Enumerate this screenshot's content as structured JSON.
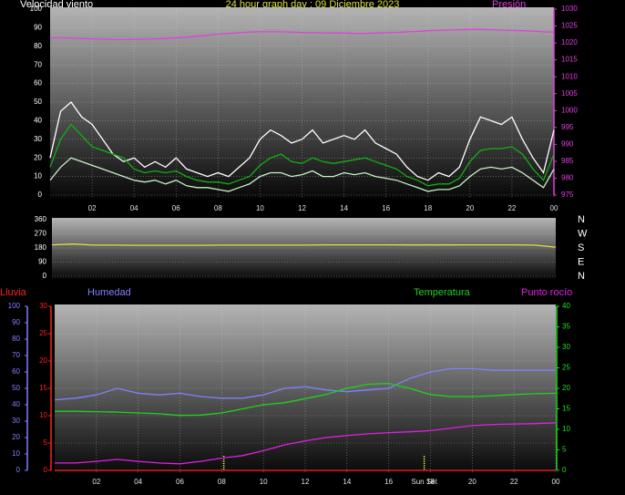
{
  "chart_data": [
    {
      "type": "line",
      "title": "24 hour graph day : 09 Diciembre 2023",
      "ylabel": "Velocidad viento",
      "y2label": "Presión",
      "axis_colors": {
        "y": "#ffffff",
        "y2": "#e040e0"
      },
      "grid": true,
      "xlim": [
        0,
        24
      ],
      "xticks": [
        {
          "value": 2,
          "label": "02"
        },
        {
          "value": 4,
          "label": "04"
        },
        {
          "value": 6,
          "label": "06"
        },
        {
          "value": 8,
          "label": "08"
        },
        10,
        12,
        14,
        16,
        18,
        20,
        22,
        {
          "value": 24,
          "label": "00"
        }
      ],
      "ylim": [
        0,
        100
      ],
      "yticks": [
        0,
        10,
        20,
        30,
        40,
        50,
        60,
        70,
        80,
        90,
        100
      ],
      "y2lim": [
        975,
        1030
      ],
      "y2ticks": [
        975,
        980,
        985,
        990,
        995,
        1000,
        1005,
        1010,
        1015,
        1020,
        1025,
        1030
      ],
      "x": [
        0,
        0.5,
        1,
        1.5,
        2,
        2.5,
        3,
        3.5,
        4,
        4.5,
        5,
        5.5,
        6,
        6.5,
        7,
        7.5,
        8,
        8.5,
        9,
        9.5,
        10,
        10.5,
        11,
        11.5,
        12,
        12.5,
        13,
        13.5,
        14,
        14.5,
        15,
        15.5,
        16,
        16.5,
        17,
        17.5,
        18,
        18.5,
        19,
        19.5,
        20,
        20.5,
        21,
        21.5,
        22,
        22.5,
        23,
        23.5,
        24
      ],
      "series": [
        {
          "color": "#ffffff",
          "values": [
            20,
            45,
            50,
            42,
            38,
            30,
            22,
            18,
            20,
            15,
            18,
            15,
            20,
            14,
            12,
            10,
            12,
            10,
            15,
            20,
            30,
            35,
            32,
            28,
            30,
            35,
            28,
            30,
            32,
            30,
            35,
            28,
            25,
            22,
            15,
            10,
            8,
            12,
            10,
            15,
            30,
            42,
            40,
            38,
            42,
            30,
            20,
            12,
            35
          ]
        },
        {
          "color": "#c8f0c8",
          "values": [
            8,
            15,
            20,
            18,
            16,
            14,
            12,
            10,
            8,
            7,
            8,
            6,
            8,
            5,
            4,
            4,
            3,
            2,
            4,
            6,
            10,
            12,
            12,
            10,
            11,
            13,
            10,
            10,
            12,
            11,
            12,
            10,
            9,
            8,
            6,
            4,
            2,
            3,
            3,
            5,
            10,
            14,
            15,
            14,
            15,
            12,
            8,
            4,
            14
          ]
        },
        {
          "color": "#10b010",
          "values": [
            15,
            30,
            38,
            32,
            26,
            24,
            22,
            20,
            14,
            12,
            13,
            12,
            13,
            10,
            8,
            7,
            7,
            6,
            8,
            10,
            16,
            20,
            22,
            18,
            17,
            20,
            18,
            17,
            18,
            19,
            20,
            18,
            16,
            14,
            10,
            8,
            5,
            6,
            6,
            9,
            18,
            24,
            25,
            25,
            26,
            22,
            14,
            8,
            22
          ]
        },
        {
          "color": "#e040e0",
          "axis": "y2",
          "values": [
            1021.5,
            1021.5,
            1021.4,
            1021.3,
            1021.2,
            1021.1,
            1021.0,
            1021.0,
            1021.0,
            1021.1,
            1021.2,
            1021.3,
            1021.5,
            1021.7,
            1022.0,
            1022.3,
            1022.6,
            1022.8,
            1023.0,
            1023.2,
            1023.3,
            1023.3,
            1023.3,
            1023.2,
            1023.1,
            1023.0,
            1023.0,
            1022.9,
            1022.9,
            1022.8,
            1022.8,
            1022.9,
            1023.0,
            1023.1,
            1023.3,
            1023.4,
            1023.6,
            1023.7,
            1023.8,
            1023.9,
            1024.0,
            1024.0,
            1023.9,
            1023.8,
            1023.7,
            1023.6,
            1023.5,
            1023.3,
            1023.2
          ]
        }
      ]
    },
    {
      "type": "line",
      "axis_colors": {
        "y": "#ffffff",
        "y2": "#ffffff"
      },
      "grid": true,
      "xlim": [
        0,
        24
      ],
      "ylim": [
        0,
        360
      ],
      "yticks": [
        0,
        90,
        180,
        270,
        360
      ],
      "y2lim": [
        0,
        360
      ],
      "y2ticks": [
        {
          "value": 360,
          "label": "N"
        },
        {
          "value": 270,
          "label": "W"
        },
        {
          "value": 180,
          "label": "S"
        },
        {
          "value": 90,
          "label": "E"
        },
        {
          "value": 0,
          "label": "N"
        }
      ],
      "x": [
        0,
        1,
        2,
        3,
        4,
        5,
        6,
        7,
        8,
        9,
        10,
        11,
        12,
        13,
        14,
        15,
        16,
        17,
        18,
        19,
        20,
        21,
        22,
        23,
        24
      ],
      "series": [
        {
          "color": "#e0e040",
          "values": [
            200,
            205,
            198,
            198,
            197,
            197,
            197,
            197,
            198,
            198,
            198,
            198,
            198,
            200,
            200,
            200,
            200,
            199,
            199,
            199,
            200,
            200,
            200,
            198,
            185
          ]
        }
      ]
    },
    {
      "type": "line",
      "axis_colors": {
        "y": "#ff2020",
        "y2": "#20e020",
        "y3": "#8080ff"
      },
      "grid": true,
      "xlim": [
        0,
        24
      ],
      "xticks": [
        {
          "value": 2,
          "label": "02"
        },
        {
          "value": 4,
          "label": "04"
        },
        {
          "value": 6,
          "label": "06"
        },
        {
          "value": 8,
          "label": "08"
        },
        10,
        12,
        14,
        16,
        18,
        20,
        22,
        {
          "value": 24,
          "label": "00"
        }
      ],
      "ylim": [
        0,
        30
      ],
      "yticks": [
        0,
        5,
        10,
        15,
        20,
        25,
        30
      ],
      "y2lim": [
        0,
        40
      ],
      "y2ticks": [
        0,
        5,
        10,
        15,
        20,
        25,
        30,
        35,
        40
      ],
      "y3lim": [
        0,
        100
      ],
      "y3ticks": [
        0,
        10,
        20,
        30,
        40,
        50,
        60,
        70,
        80,
        90,
        100
      ],
      "markers": [
        {
          "x": 8.1
        },
        {
          "x": 17.7,
          "label": "Sun Set"
        }
      ],
      "x": [
        0,
        1,
        2,
        3,
        4,
        5,
        6,
        7,
        8,
        9,
        10,
        11,
        12,
        13,
        14,
        15,
        16,
        17,
        18,
        19,
        20,
        21,
        22,
        23,
        24
      ],
      "series": [
        {
          "name": "Lluvia",
          "color": "#ff2020",
          "axis": "y",
          "values": [
            0,
            0,
            0,
            0,
            0,
            0,
            0,
            0,
            0,
            0,
            0,
            0,
            0,
            0,
            0,
            0,
            0,
            0,
            0,
            0,
            0,
            0,
            0,
            0,
            0
          ]
        },
        {
          "name": "Humedad",
          "color": "#8080ff",
          "axis": "y3",
          "values": [
            43,
            44,
            46,
            50,
            47,
            46,
            47,
            45,
            44,
            44,
            46,
            50,
            51,
            49,
            48,
            49,
            50,
            56,
            60,
            62,
            62,
            61,
            61,
            61,
            61
          ]
        },
        {
          "name": "Temperatura",
          "color": "#20d020",
          "axis": "y2",
          "values": [
            14.4,
            14.4,
            14.3,
            14.2,
            14.0,
            13.8,
            13.4,
            13.5,
            14.0,
            15.0,
            16.0,
            16.5,
            17.5,
            18.5,
            20.0,
            21.0,
            21.2,
            20.0,
            18.5,
            18.0,
            18.0,
            18.2,
            18.5,
            18.7,
            18.8
          ]
        },
        {
          "name": "Punto rocío",
          "color": "#e020e0",
          "axis": "y2",
          "values": [
            1.8,
            1.8,
            2.2,
            2.7,
            2.2,
            1.8,
            1.6,
            2.2,
            3.0,
            3.6,
            4.8,
            6.2,
            7.2,
            8.0,
            8.5,
            8.9,
            9.2,
            9.4,
            9.7,
            10.3,
            10.9,
            11.2,
            11.3,
            11.4,
            11.6
          ]
        }
      ]
    }
  ]
}
